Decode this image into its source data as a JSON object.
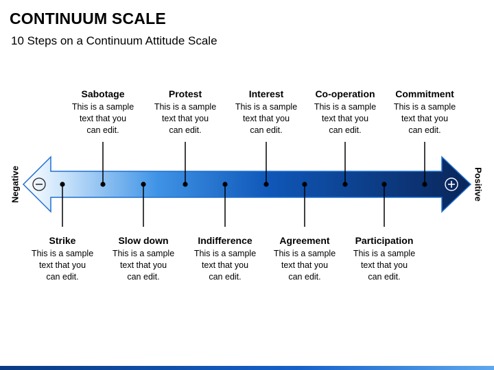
{
  "header": {
    "title": "CONTINUUM SCALE",
    "subtitle": "10 Steps on a Continuum Attitude Scale"
  },
  "axis": {
    "negative_label": "Negative",
    "positive_label": "Positive",
    "minus_symbol": "⊖",
    "plus_symbol": "⊕"
  },
  "steps": [
    {
      "label": "Strike",
      "text": "This is a sample\ntext that you\ncan edit.",
      "position": "below"
    },
    {
      "label": "Sabotage",
      "text": "This is a sample\ntext that you\ncan edit.",
      "position": "above"
    },
    {
      "label": "Slow down",
      "text": "This is a sample\ntext that you\ncan edit.",
      "position": "below"
    },
    {
      "label": "Protest",
      "text": "This is a sample\ntext that you\ncan edit.",
      "position": "above"
    },
    {
      "label": "Indifference",
      "text": "This is a sample\ntext that you\ncan edit.",
      "position": "below"
    },
    {
      "label": "Interest",
      "text": "This is a sample\ntext that you\ncan edit.",
      "position": "above"
    },
    {
      "label": "Agreement",
      "text": "This is a sample\ntext that you\ncan edit.",
      "position": "below"
    },
    {
      "label": "Co-operation",
      "text": "This is a sample\ntext that you\ncan edit.",
      "position": "above"
    },
    {
      "label": "Participation",
      "text": "This is a sample\ntext that you\ncan edit.",
      "position": "below"
    },
    {
      "label": "Commitment",
      "text": "This is a sample\ntext that you\ncan edit.",
      "position": "above"
    }
  ],
  "colors": {
    "arrow_light": "#ddeeff",
    "arrow_mid": "#3f8ee3",
    "arrow_dark": "#0c2a66",
    "outline": "#1e6fd0",
    "dot": "#000000"
  }
}
